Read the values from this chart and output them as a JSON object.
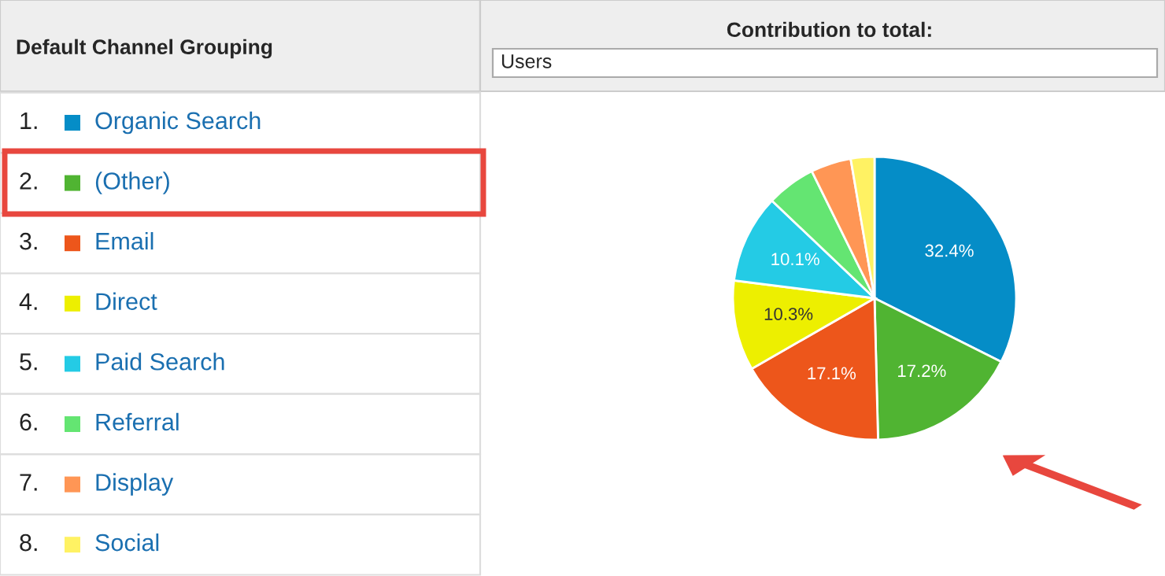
{
  "chart_data": {
    "type": "pie",
    "title": "Contribution to total:",
    "subtitle": "Users",
    "legend_title": "Default Channel Grouping",
    "legend": "left",
    "annotations": [
      "1.",
      "2.",
      "3.",
      "4.",
      "5.",
      "6.",
      "7.",
      "8."
    ],
    "categories": [
      "Organic Search",
      "(Other)",
      "Email",
      "Direct",
      "Paid Search",
      "Referral",
      "Display",
      "Social"
    ],
    "values": [
      32.4,
      17.2,
      17.1,
      10.3,
      10.1,
      5.6,
      4.6,
      2.7
    ],
    "value_labels": [
      "32.4%",
      "17.2%",
      "17.1%",
      "10.3%",
      "10.1%",
      null,
      null,
      null
    ],
    "colors": [
      "#058dc7",
      "#50b432",
      "#ed561b",
      "#edef00",
      "#24cbe5",
      "#64e572",
      "#ff9655",
      "#fff263"
    ]
  }
}
